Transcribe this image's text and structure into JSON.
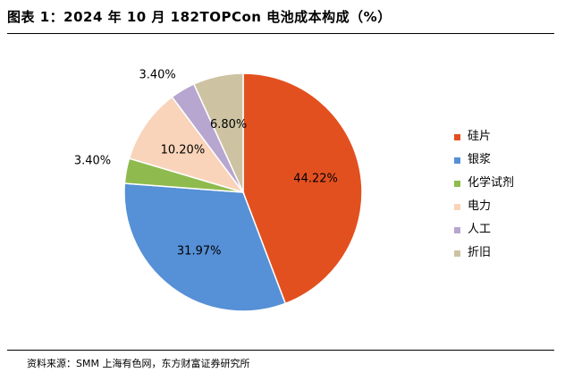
{
  "figure": {
    "title": "图表 1：2024 年 10 月 182TOPCon 电池成本构成（%）",
    "source": "资料来源：SMM 上海有色网，东方财富证券研究所"
  },
  "chart_data": {
    "type": "pie",
    "title": "",
    "categories": [
      "硅片",
      "银浆",
      "化学试剂",
      "电力",
      "人工",
      "折旧"
    ],
    "values": [
      44.22,
      31.97,
      3.4,
      10.2,
      3.4,
      6.8
    ],
    "labels": [
      "44.22%",
      "31.97%",
      "3.40%",
      "10.20%",
      "3.40%",
      "6.80%"
    ],
    "colors": [
      "#E3501F",
      "#5690D6",
      "#8FBB4E",
      "#F9D4BA",
      "#B7A6CF",
      "#CDC3A2"
    ],
    "start_angle_deg": 0,
    "direction": "clockwise",
    "legend_position": "right"
  }
}
